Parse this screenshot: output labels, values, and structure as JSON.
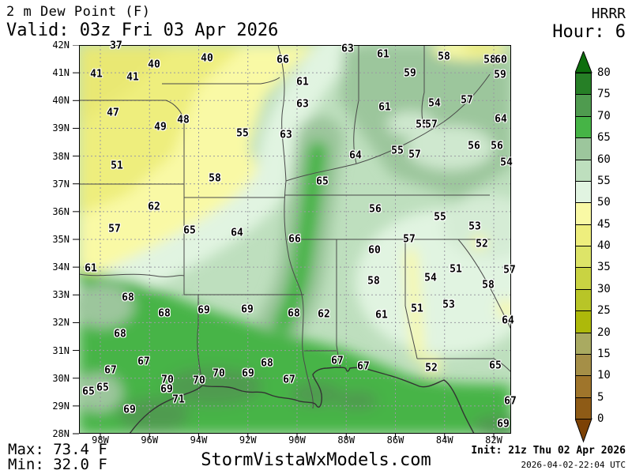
{
  "header": {
    "title": "2 m Dew Point (F)",
    "valid": "Valid: 03z Fri 03 Apr 2026",
    "model": "HRRR",
    "hour": "Hour: 6"
  },
  "footer": {
    "max_label": "Max: 73.4 F",
    "min_label": "Min: 32.0 F",
    "site": "StormVistaWxModels.com",
    "init": "Init: 21z Thu 02 Apr 2026",
    "generated": "2026-04-02-22:04 UTC"
  },
  "map": {
    "lat_labels": [
      "42N",
      "41N",
      "40N",
      "39N",
      "38N",
      "37N",
      "36N",
      "35N",
      "34N",
      "33N",
      "32N",
      "31N",
      "30N",
      "29N",
      "28N"
    ],
    "lon_labels": [
      "98W",
      "96W",
      "94W",
      "92W",
      "90W",
      "88W",
      "86W",
      "84W",
      "82W"
    ],
    "stations": [
      [
        "37",
        147,
        58
      ],
      [
        "63",
        440,
        62
      ],
      [
        "61",
        485,
        69
      ],
      [
        "58",
        562,
        72
      ],
      [
        "58",
        620,
        76
      ],
      [
        "60",
        634,
        76
      ],
      [
        "40",
        262,
        74
      ],
      [
        "66",
        358,
        76
      ],
      [
        "40",
        195,
        82
      ],
      [
        "41",
        122,
        94
      ],
      [
        "41",
        168,
        98
      ],
      [
        "59",
        519,
        93
      ],
      [
        "59",
        633,
        95
      ],
      [
        "61",
        383,
        104
      ],
      [
        "57",
        591,
        127
      ],
      [
        "54",
        550,
        131
      ],
      [
        "63",
        383,
        132
      ],
      [
        "61",
        487,
        136
      ],
      [
        "47",
        143,
        143
      ],
      [
        "48",
        232,
        152
      ],
      [
        "49",
        203,
        161
      ],
      [
        "64",
        634,
        151
      ],
      [
        "55",
        534,
        158
      ],
      [
        "57",
        546,
        158
      ],
      [
        "55",
        307,
        169
      ],
      [
        "63",
        362,
        171
      ],
      [
        "56",
        600,
        185
      ],
      [
        "56",
        629,
        185
      ],
      [
        "55",
        503,
        191
      ],
      [
        "57",
        525,
        196
      ],
      [
        "64",
        450,
        197
      ],
      [
        "54",
        641,
        206
      ],
      [
        "51",
        148,
        210
      ],
      [
        "58",
        272,
        226
      ],
      [
        "65",
        408,
        230
      ],
      [
        "62",
        195,
        262
      ],
      [
        "56",
        475,
        265
      ],
      [
        "55",
        557,
        275
      ],
      [
        "53",
        601,
        287
      ],
      [
        "57",
        145,
        290
      ],
      [
        "65",
        240,
        292
      ],
      [
        "64",
        300,
        295
      ],
      [
        "66",
        373,
        303
      ],
      [
        "57",
        518,
        303
      ],
      [
        "52",
        610,
        309
      ],
      [
        "60",
        474,
        317
      ],
      [
        "61",
        115,
        340
      ],
      [
        "51",
        577,
        341
      ],
      [
        "57",
        645,
        342
      ],
      [
        "54",
        545,
        352
      ],
      [
        "58",
        473,
        356
      ],
      [
        "58",
        618,
        361
      ],
      [
        "68",
        162,
        377
      ],
      [
        "53",
        568,
        386
      ],
      [
        "51",
        528,
        391
      ],
      [
        "69",
        313,
        392
      ],
      [
        "69",
        258,
        393
      ],
      [
        "68",
        208,
        397
      ],
      [
        "68",
        372,
        397
      ],
      [
        "62",
        410,
        398
      ],
      [
        "61",
        483,
        399
      ],
      [
        "64",
        643,
        406
      ],
      [
        "68",
        152,
        423
      ],
      [
        "67",
        427,
        457
      ],
      [
        "67",
        182,
        458
      ],
      [
        "68",
        338,
        460
      ],
      [
        "65",
        627,
        463
      ],
      [
        "67",
        460,
        464
      ],
      [
        "52",
        546,
        466
      ],
      [
        "67",
        140,
        469
      ],
      [
        "70",
        277,
        473
      ],
      [
        "69",
        314,
        473
      ],
      [
        "70",
        212,
        481
      ],
      [
        "70",
        252,
        482
      ],
      [
        "67",
        366,
        481
      ],
      [
        "65",
        130,
        491
      ],
      [
        "65",
        112,
        496
      ],
      [
        "69",
        211,
        493
      ],
      [
        "71",
        226,
        506
      ],
      [
        "67",
        646,
        508
      ],
      [
        "69",
        164,
        519
      ],
      [
        "69",
        637,
        537
      ]
    ]
  },
  "colorbar": {
    "tick_labels": [
      "80",
      "75",
      "70",
      "65",
      "60",
      "55",
      "50",
      "45",
      "40",
      "35",
      "30",
      "25",
      "20",
      "15",
      "10",
      "5",
      "0"
    ],
    "cell_colors": [
      "#267f26",
      "#4f9b4f",
      "#46b446",
      "#9cc69c",
      "#bedfbe",
      "#e1f4e1",
      "#f9f9a5",
      "#eeee7d",
      "#dde468",
      "#c9d342",
      "#b8c527",
      "#adb90a",
      "#a9aa61",
      "#a58f47",
      "#9f752b",
      "#8e5b16"
    ],
    "arrow_up_color": "#0d6e0d",
    "arrow_down_color": "#7c4105"
  },
  "chart_data": {
    "type": "heatmap",
    "title": "2 m Dew Point (F)",
    "legend_ticks": [
      80,
      75,
      70,
      65,
      60,
      55,
      50,
      45,
      40,
      35,
      30,
      25,
      20,
      15,
      10,
      5,
      0
    ],
    "legend_range": [
      0,
      85
    ],
    "max_f": 73.4,
    "min_f": 32.0,
    "notes": "HRRR filled-contour dew point map over south-central/southeastern US; plotted station values in F are listed in map.stations as [value,x,y]."
  }
}
